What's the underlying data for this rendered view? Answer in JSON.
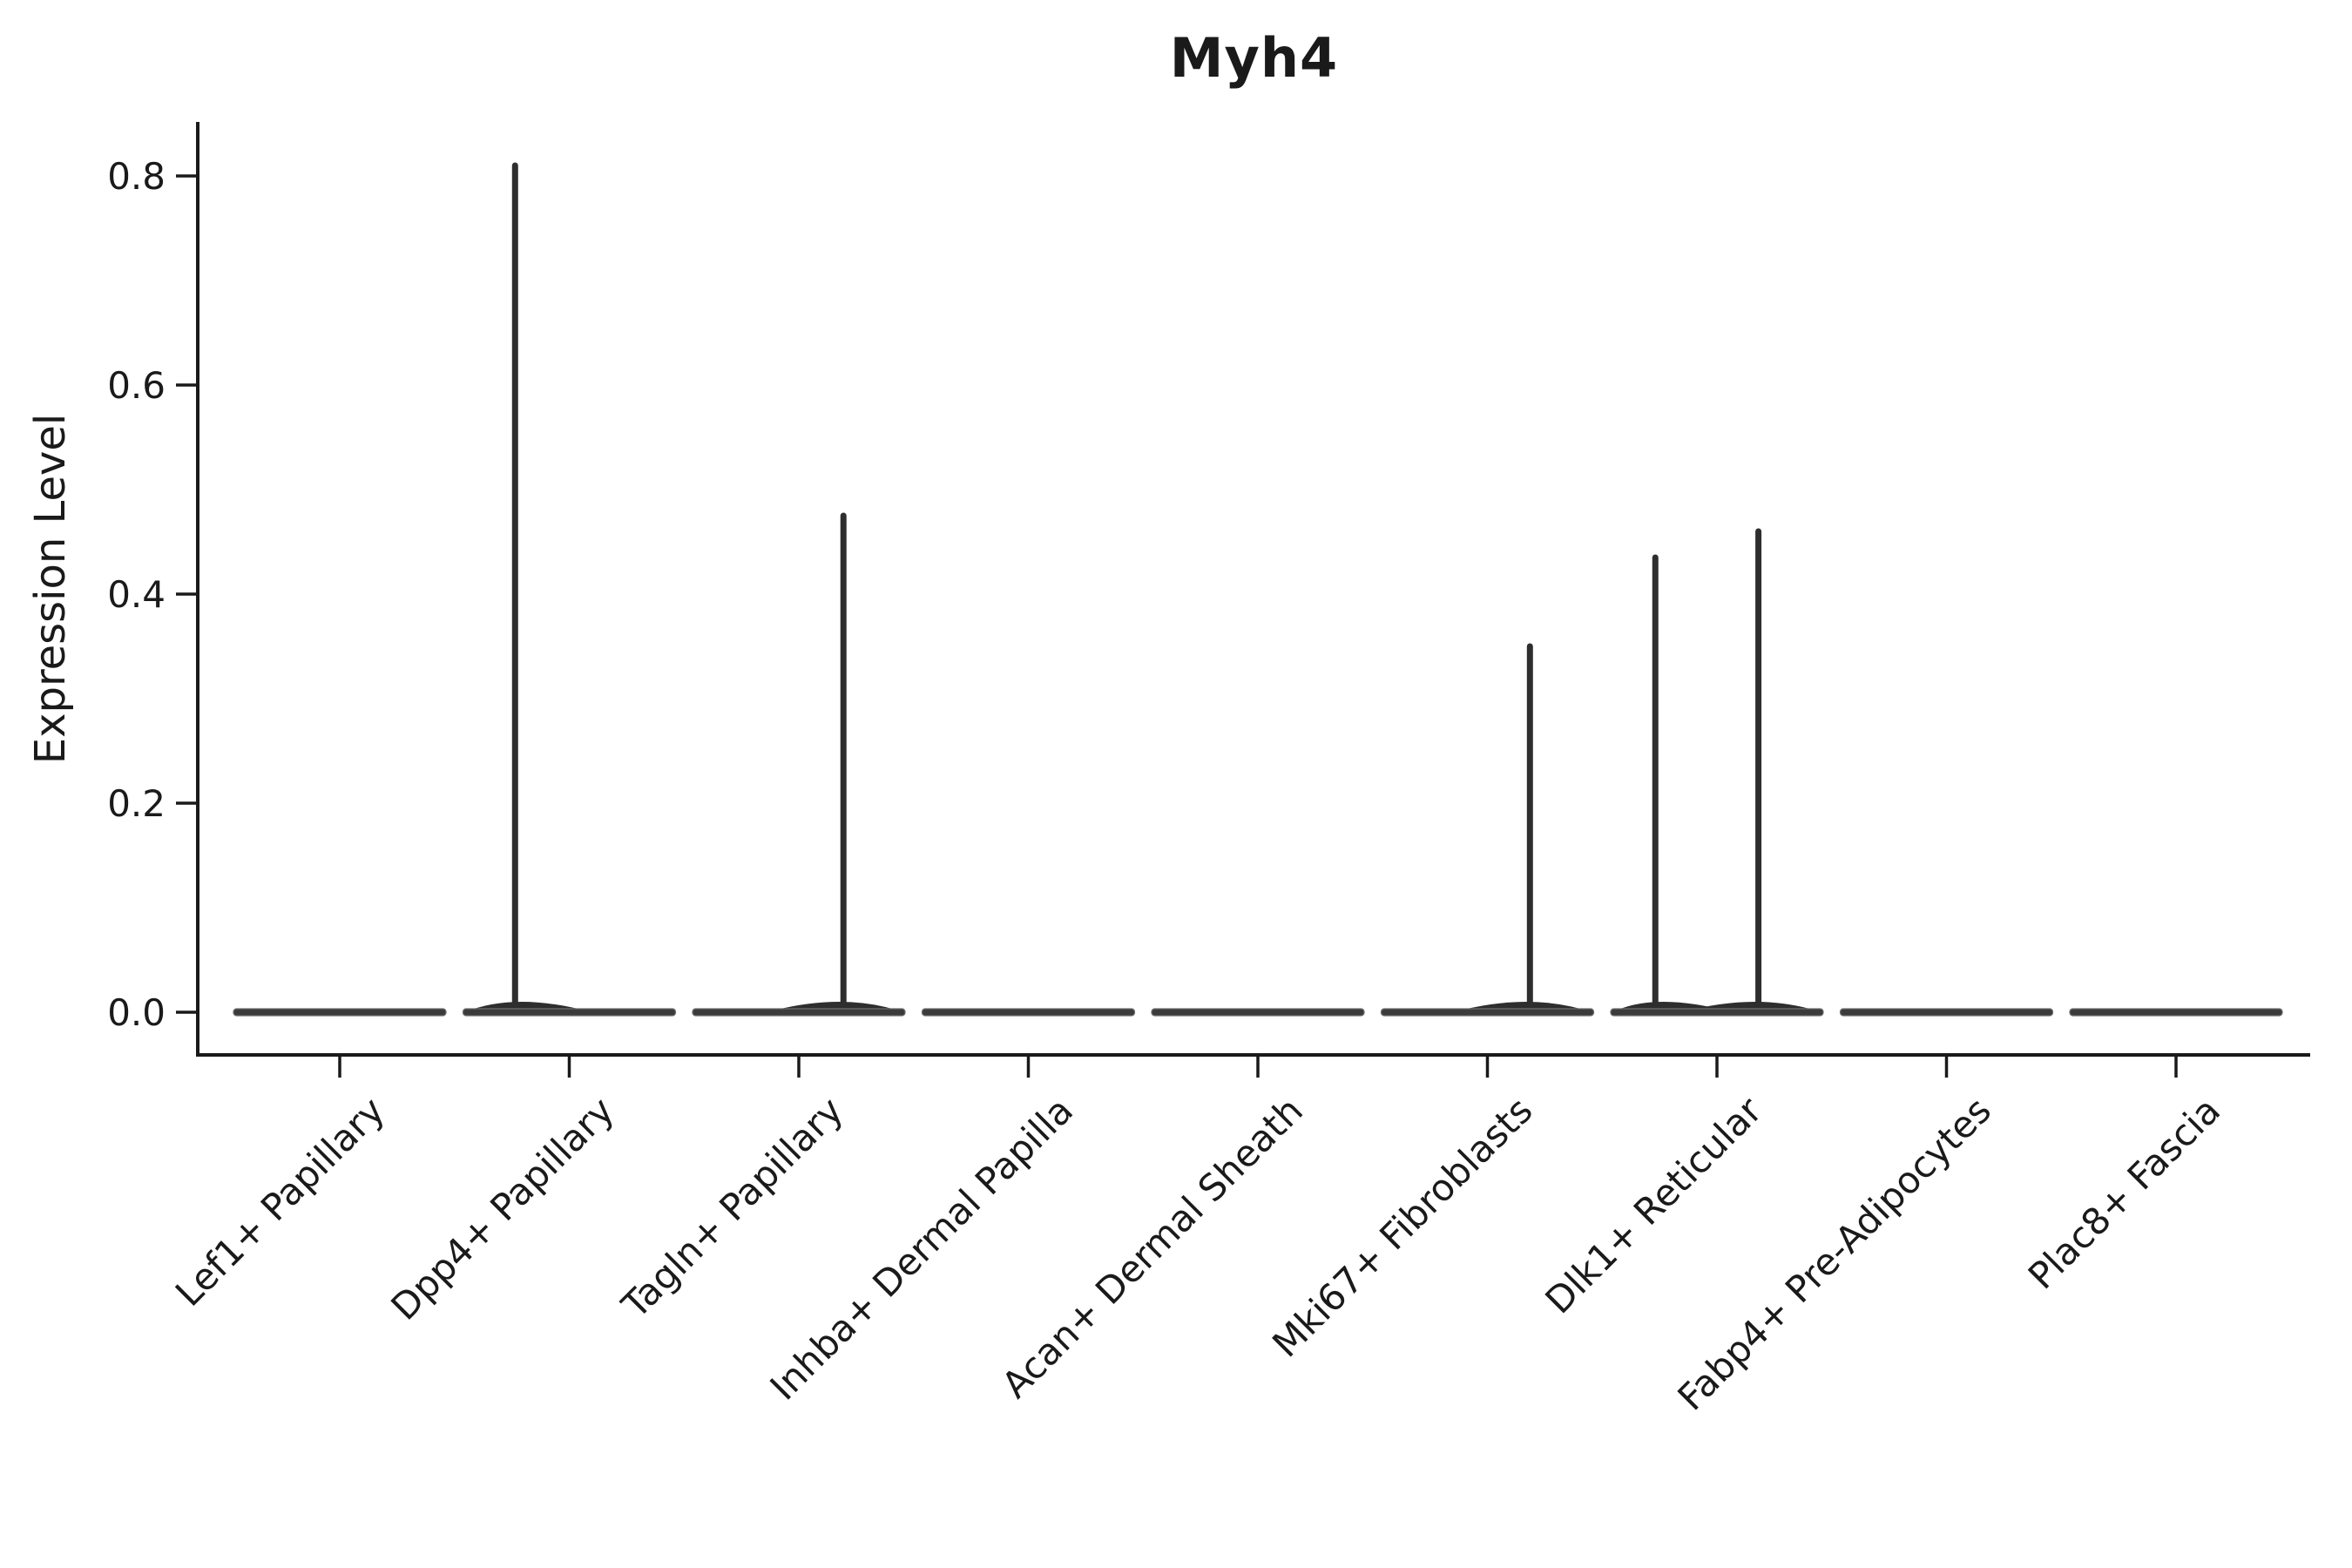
{
  "chart_data": {
    "type": "violin",
    "title": "Myh4",
    "xlabel": "",
    "ylabel": "Expression Level",
    "categories": [
      "Lef1+ Papillary",
      "Dpp4+ Papillary",
      "Tagln+ Papillary",
      "Inhba+ Dermal Papilla",
      "Acan+ Dermal Sheath",
      "Mki67+ Fibroblasts",
      "Dlk1+ Reticular",
      "Fabp4+ Pre-Adipocytes",
      "Plac8+ Fascia"
    ],
    "yticks": [
      0.0,
      0.2,
      0.4,
      0.6,
      0.8
    ],
    "ylim": [
      -0.041,
      0.852
    ],
    "grid": false,
    "legend": null,
    "violins": [
      {
        "category": "Lef1+ Papillary",
        "baseline": 0.0,
        "spikes": []
      },
      {
        "category": "Dpp4+ Papillary",
        "baseline": 0.0,
        "spikes": [
          {
            "value": 0.81,
            "offset": -0.51
          }
        ]
      },
      {
        "category": "Tagln+ Papillary",
        "baseline": 0.0,
        "spikes": [
          {
            "value": 0.475,
            "offset": 0.42
          }
        ]
      },
      {
        "category": "Inhba+ Dermal Papilla",
        "baseline": 0.0,
        "spikes": []
      },
      {
        "category": "Acan+ Dermal Sheath",
        "baseline": 0.0,
        "spikes": []
      },
      {
        "category": "Mki67+ Fibroblasts",
        "baseline": 0.0,
        "spikes": [
          {
            "value": 0.35,
            "offset": 0.4
          }
        ]
      },
      {
        "category": "Dlk1+ Reticular",
        "baseline": 0.0,
        "spikes": [
          {
            "value": 0.435,
            "offset": -0.58
          },
          {
            "value": 0.46,
            "offset": 0.39
          }
        ]
      },
      {
        "category": "Fabp4+ Pre-Adipocytes",
        "baseline": 0.0,
        "spikes": []
      },
      {
        "category": "Plac8+ Fascia",
        "baseline": 0.0,
        "spikes": []
      }
    ],
    "colors": {
      "axis": "#1a1a1a",
      "text": "#1a1a1a",
      "violin_fill": "#3b3b3b",
      "violin_edge": "#6e6e6e",
      "spike": "#2e2e2e"
    }
  }
}
